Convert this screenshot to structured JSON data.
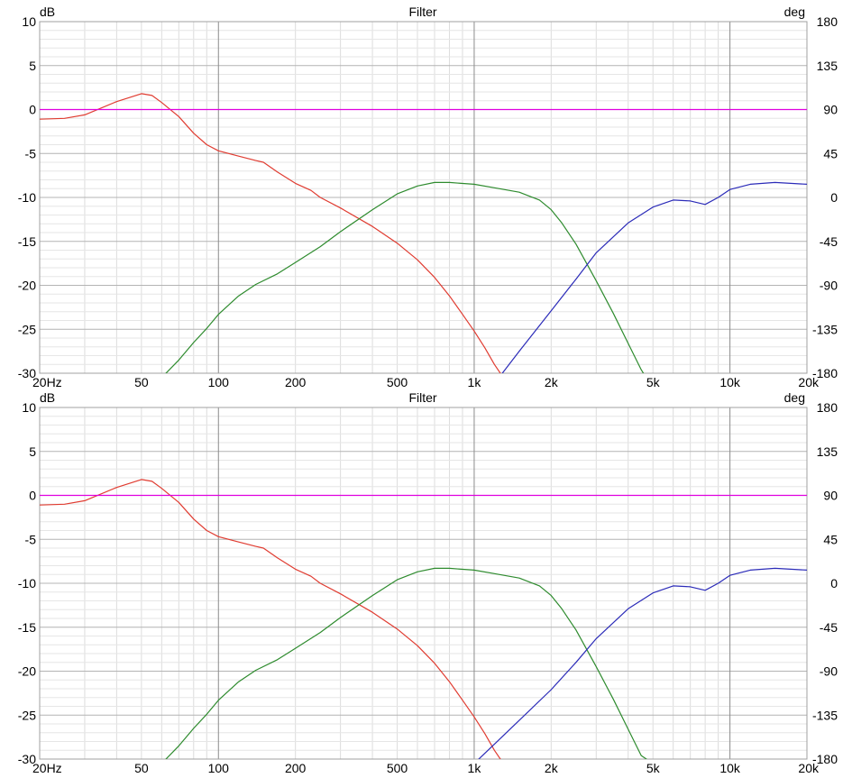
{
  "chart_data": [
    {
      "type": "line",
      "title": "Filter",
      "ylabel": "dB",
      "y2label": "deg",
      "xscale": "log",
      "xlim": [
        20,
        20000
      ],
      "ylim": [
        -30,
        10
      ],
      "y2lim": [
        -180,
        180
      ],
      "grid": true,
      "x_ticks": [
        {
          "value": 20,
          "label": "20Hz"
        },
        {
          "value": 50,
          "label": "50"
        },
        {
          "value": 100,
          "label": "100"
        },
        {
          "value": 200,
          "label": "200"
        },
        {
          "value": 500,
          "label": "500"
        },
        {
          "value": 1000,
          "label": "1k"
        },
        {
          "value": 2000,
          "label": "2k"
        },
        {
          "value": 5000,
          "label": "5k"
        },
        {
          "value": 10000,
          "label": "10k"
        },
        {
          "value": 20000,
          "label": "20k"
        }
      ],
      "y_ticks": [
        10,
        5,
        0,
        -5,
        -10,
        -15,
        -20,
        -25,
        -30
      ],
      "y2_ticks": [
        180,
        135,
        90,
        45,
        0,
        -45,
        -90,
        -135,
        -180
      ],
      "series": [
        {
          "color": "#e03c31",
          "points": [
            [
              20,
              -1.1
            ],
            [
              25,
              -1.0
            ],
            [
              30,
              -0.6
            ],
            [
              40,
              0.9
            ],
            [
              50,
              1.8
            ],
            [
              55,
              1.6
            ],
            [
              60,
              0.8
            ],
            [
              70,
              -0.8
            ],
            [
              80,
              -2.7
            ],
            [
              90,
              -4.0
            ],
            [
              100,
              -4.7
            ],
            [
              120,
              -5.3
            ],
            [
              140,
              -5.8
            ],
            [
              150,
              -6.0
            ],
            [
              170,
              -7.1
            ],
            [
              200,
              -8.4
            ],
            [
              230,
              -9.2
            ],
            [
              250,
              -10.0
            ],
            [
              300,
              -11.2
            ],
            [
              400,
              -13.3
            ],
            [
              500,
              -15.2
            ],
            [
              600,
              -17.1
            ],
            [
              700,
              -19.1
            ],
            [
              800,
              -21.2
            ],
            [
              900,
              -23.3
            ],
            [
              1000,
              -25.2
            ],
            [
              1100,
              -27.1
            ],
            [
              1200,
              -29.0
            ],
            [
              1300,
              -30.5
            ]
          ]
        },
        {
          "color": "#2e8b2e",
          "points": [
            [
              60,
              -30.5
            ],
            [
              70,
              -28.5
            ],
            [
              80,
              -26.5
            ],
            [
              90,
              -24.9
            ],
            [
              100,
              -23.3
            ],
            [
              120,
              -21.2
            ],
            [
              140,
              -19.9
            ],
            [
              170,
              -18.7
            ],
            [
              200,
              -17.4
            ],
            [
              250,
              -15.6
            ],
            [
              300,
              -13.9
            ],
            [
              400,
              -11.4
            ],
            [
              500,
              -9.6
            ],
            [
              600,
              -8.7
            ],
            [
              700,
              -8.3
            ],
            [
              800,
              -8.3
            ],
            [
              1000,
              -8.5
            ],
            [
              1200,
              -8.9
            ],
            [
              1500,
              -9.4
            ],
            [
              1800,
              -10.3
            ],
            [
              2000,
              -11.4
            ],
            [
              2200,
              -12.9
            ],
            [
              2500,
              -15.3
            ],
            [
              3000,
              -19.5
            ],
            [
              3500,
              -23.2
            ],
            [
              4000,
              -26.6
            ],
            [
              4500,
              -29.6
            ],
            [
              4700,
              -30.5
            ]
          ]
        },
        {
          "color": "#2b2bb8",
          "points": [
            [
              1250,
              -30.5
            ],
            [
              1500,
              -27.5
            ],
            [
              2000,
              -22.9
            ],
            [
              2500,
              -19.3
            ],
            [
              3000,
              -16.3
            ],
            [
              4000,
              -12.9
            ],
            [
              5000,
              -11.1
            ],
            [
              6000,
              -10.3
            ],
            [
              7000,
              -10.4
            ],
            [
              8000,
              -10.8
            ],
            [
              9000,
              -10.0
            ],
            [
              10000,
              -9.1
            ],
            [
              12000,
              -8.5
            ],
            [
              15000,
              -8.3
            ],
            [
              20000,
              -8.5
            ]
          ]
        },
        {
          "color": "#e000e0",
          "points": [
            [
              20,
              0
            ],
            [
              20000,
              0
            ]
          ]
        }
      ]
    },
    {
      "type": "line",
      "title": "Filter",
      "ylabel": "dB",
      "y2label": "deg",
      "xscale": "log",
      "xlim": [
        20,
        20000
      ],
      "ylim": [
        -30,
        10
      ],
      "y2lim": [
        -180,
        180
      ],
      "grid": true,
      "x_ticks": [
        {
          "value": 20,
          "label": "20Hz"
        },
        {
          "value": 50,
          "label": "50"
        },
        {
          "value": 100,
          "label": "100"
        },
        {
          "value": 200,
          "label": "200"
        },
        {
          "value": 500,
          "label": "500"
        },
        {
          "value": 1000,
          "label": "1k"
        },
        {
          "value": 2000,
          "label": "2k"
        },
        {
          "value": 5000,
          "label": "5k"
        },
        {
          "value": 10000,
          "label": "10k"
        },
        {
          "value": 20000,
          "label": "20k"
        }
      ],
      "y_ticks": [
        10,
        5,
        0,
        -5,
        -10,
        -15,
        -20,
        -25,
        -30
      ],
      "y2_ticks": [
        180,
        135,
        90,
        45,
        0,
        -45,
        -90,
        -135,
        -180
      ],
      "series": [
        {
          "color": "#e03c31",
          "points": [
            [
              20,
              -1.1
            ],
            [
              25,
              -1.0
            ],
            [
              30,
              -0.6
            ],
            [
              40,
              0.9
            ],
            [
              50,
              1.8
            ],
            [
              55,
              1.6
            ],
            [
              60,
              0.8
            ],
            [
              70,
              -0.8
            ],
            [
              80,
              -2.7
            ],
            [
              90,
              -4.0
            ],
            [
              100,
              -4.7
            ],
            [
              120,
              -5.3
            ],
            [
              140,
              -5.8
            ],
            [
              150,
              -6.0
            ],
            [
              170,
              -7.1
            ],
            [
              200,
              -8.4
            ],
            [
              230,
              -9.2
            ],
            [
              250,
              -10.0
            ],
            [
              300,
              -11.2
            ],
            [
              400,
              -13.3
            ],
            [
              500,
              -15.2
            ],
            [
              600,
              -17.1
            ],
            [
              700,
              -19.1
            ],
            [
              800,
              -21.2
            ],
            [
              900,
              -23.3
            ],
            [
              1000,
              -25.2
            ],
            [
              1100,
              -27.1
            ],
            [
              1200,
              -29.0
            ],
            [
              1300,
              -30.5
            ]
          ]
        },
        {
          "color": "#2e8b2e",
          "points": [
            [
              60,
              -30.5
            ],
            [
              70,
              -28.5
            ],
            [
              80,
              -26.5
            ],
            [
              90,
              -24.9
            ],
            [
              100,
              -23.3
            ],
            [
              120,
              -21.2
            ],
            [
              140,
              -19.9
            ],
            [
              170,
              -18.7
            ],
            [
              200,
              -17.4
            ],
            [
              250,
              -15.6
            ],
            [
              300,
              -13.9
            ],
            [
              400,
              -11.4
            ],
            [
              500,
              -9.6
            ],
            [
              600,
              -8.7
            ],
            [
              700,
              -8.3
            ],
            [
              800,
              -8.3
            ],
            [
              1000,
              -8.5
            ],
            [
              1200,
              -8.9
            ],
            [
              1500,
              -9.4
            ],
            [
              1800,
              -10.3
            ],
            [
              2000,
              -11.4
            ],
            [
              2200,
              -12.9
            ],
            [
              2500,
              -15.3
            ],
            [
              3000,
              -19.5
            ],
            [
              3500,
              -23.2
            ],
            [
              4000,
              -26.6
            ],
            [
              4500,
              -29.6
            ],
            [
              5000,
              -30.5
            ]
          ]
        },
        {
          "color": "#2b2bb8",
          "points": [
            [
              1000,
              -30.5
            ],
            [
              1200,
              -28.3
            ],
            [
              1500,
              -25.6
            ],
            [
              2000,
              -22.1
            ],
            [
              2500,
              -19.0
            ],
            [
              3000,
              -16.3
            ],
            [
              4000,
              -12.9
            ],
            [
              5000,
              -11.1
            ],
            [
              6000,
              -10.3
            ],
            [
              7000,
              -10.4
            ],
            [
              8000,
              -10.8
            ],
            [
              9000,
              -10.0
            ],
            [
              10000,
              -9.1
            ],
            [
              12000,
              -8.5
            ],
            [
              15000,
              -8.3
            ],
            [
              20000,
              -8.5
            ]
          ]
        },
        {
          "color": "#e000e0",
          "points": [
            [
              20,
              0
            ],
            [
              20000,
              0
            ]
          ]
        }
      ]
    }
  ]
}
